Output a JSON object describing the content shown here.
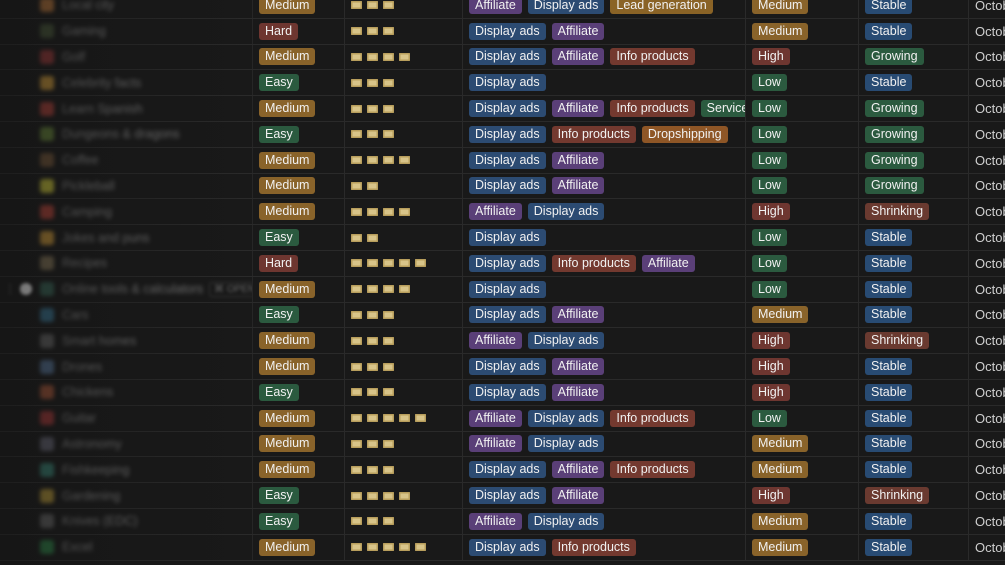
{
  "open_badge": "⌘ OPEN",
  "colors": {
    "background": "#191919",
    "medium": "#89632a",
    "hard": "#6e3630",
    "easy": "#2b5a3f",
    "affiliate": "#5a3f78",
    "display_ads": "#2c4b72",
    "lead_generation": "#8a6326",
    "info_products": "#73392f",
    "services": "#2b5a3f",
    "dropshipping": "#8e5626",
    "stable": "#284b73",
    "growing": "#2b5a3f",
    "shrinking": "#6a3a30"
  },
  "rows": [
    {
      "name": "Local city",
      "icon": "#c27a3b",
      "difficulty": "Medium",
      "cost": 3,
      "monetization": [
        "Affiliate",
        "Display ads",
        "Lead generation"
      ],
      "competition": "Medium",
      "trend": "Stable",
      "date": "Octob"
    },
    {
      "name": "Gaming",
      "icon": "#4a5a3a",
      "difficulty": "Hard",
      "cost": 3,
      "monetization": [
        "Display ads",
        "Affiliate"
      ],
      "competition": "Medium",
      "trend": "Stable",
      "date": "Octob"
    },
    {
      "name": "Golf",
      "icon": "#a33a3a",
      "difficulty": "Medium",
      "cost": 4,
      "monetization": [
        "Display ads",
        "Affiliate",
        "Info products"
      ],
      "competition": "High",
      "trend": "Growing",
      "date": "Octob"
    },
    {
      "name": "Celebrity facts",
      "icon": "#d9a13a",
      "difficulty": "Easy",
      "cost": 3,
      "monetization": [
        "Display ads"
      ],
      "competition": "Low",
      "trend": "Stable",
      "date": "Octob"
    },
    {
      "name": "Learn Spanish",
      "icon": "#b7423a",
      "difficulty": "Medium",
      "cost": 3,
      "monetization": [
        "Display ads",
        "Affiliate",
        "Info products",
        "Services"
      ],
      "competition": "Low",
      "trend": "Growing",
      "date": "Octob"
    },
    {
      "name": "Dungeons & dragons",
      "icon": "#6a8a3a",
      "difficulty": "Easy",
      "cost": 3,
      "monetization": [
        "Display ads",
        "Info products",
        "Dropshipping"
      ],
      "competition": "Low",
      "trend": "Growing",
      "date": "Octob"
    },
    {
      "name": "Coffee",
      "icon": "#7a5a3a",
      "difficulty": "Medium",
      "cost": 4,
      "monetization": [
        "Display ads",
        "Affiliate"
      ],
      "competition": "Low",
      "trend": "Growing",
      "date": "Octob"
    },
    {
      "name": "Pickleball",
      "icon": "#d7d13a",
      "difficulty": "Medium",
      "cost": 2,
      "monetization": [
        "Display ads",
        "Affiliate"
      ],
      "competition": "Low",
      "trend": "Growing",
      "date": "Octob"
    },
    {
      "name": "Camping",
      "icon": "#c2463a",
      "difficulty": "Medium",
      "cost": 4,
      "monetization": [
        "Affiliate",
        "Display ads"
      ],
      "competition": "High",
      "trend": "Shrinking",
      "date": "Octob"
    },
    {
      "name": "Jokes and puns",
      "icon": "#d9a13a",
      "difficulty": "Easy",
      "cost": 2,
      "monetization": [
        "Display ads"
      ],
      "competition": "Low",
      "trend": "Stable",
      "date": "Octob"
    },
    {
      "name": "Recipes",
      "icon": "#8a7a5a",
      "difficulty": "Hard",
      "cost": 5,
      "monetization": [
        "Display ads",
        "Info products",
        "Affiliate"
      ],
      "competition": "Low",
      "trend": "Stable",
      "date": "Octob"
    },
    {
      "name": "Online tools & calculators",
      "icon": "#3a6a5a",
      "difficulty": "Medium",
      "cost": 4,
      "monetization": [
        "Display ads"
      ],
      "competition": "Low",
      "trend": "Stable",
      "date": "Octob",
      "hovered": true
    },
    {
      "name": "Cars",
      "icon": "#3a7a9a",
      "difficulty": "Easy",
      "cost": 3,
      "monetization": [
        "Display ads",
        "Affiliate"
      ],
      "competition": "Medium",
      "trend": "Stable",
      "date": "Octob"
    },
    {
      "name": "Smart homes",
      "icon": "#6a6a6a",
      "difficulty": "Medium",
      "cost": 3,
      "monetization": [
        "Affiliate",
        "Display ads"
      ],
      "competition": "High",
      "trend": "Shrinking",
      "date": "Octob"
    },
    {
      "name": "Drones",
      "icon": "#5a7aa0",
      "difficulty": "Medium",
      "cost": 3,
      "monetization": [
        "Display ads",
        "Affiliate"
      ],
      "competition": "High",
      "trend": "Stable",
      "date": "Octob"
    },
    {
      "name": "Chickens",
      "icon": "#b05a3a",
      "difficulty": "Easy",
      "cost": 3,
      "monetization": [
        "Display ads",
        "Affiliate"
      ],
      "competition": "High",
      "trend": "Stable",
      "date": "Octob"
    },
    {
      "name": "Guitar",
      "icon": "#b03a3a",
      "difficulty": "Medium",
      "cost": 5,
      "monetization": [
        "Affiliate",
        "Display ads",
        "Info products"
      ],
      "competition": "Low",
      "trend": "Stable",
      "date": "Octob"
    },
    {
      "name": "Astronomy",
      "icon": "#6a6a7a",
      "difficulty": "Medium",
      "cost": 3,
      "monetization": [
        "Affiliate",
        "Display ads"
      ],
      "competition": "Medium",
      "trend": "Stable",
      "date": "Octob"
    },
    {
      "name": "Fishkeeping",
      "icon": "#3a8a7a",
      "difficulty": "Medium",
      "cost": 3,
      "monetization": [
        "Display ads",
        "Affiliate",
        "Info products"
      ],
      "competition": "Medium",
      "trend": "Stable",
      "date": "Octob"
    },
    {
      "name": "Gardening",
      "icon": "#c2a13a",
      "difficulty": "Easy",
      "cost": 4,
      "monetization": [
        "Display ads",
        "Affiliate"
      ],
      "competition": "High",
      "trend": "Shrinking",
      "date": "Octob"
    },
    {
      "name": "Knives (EDC)",
      "icon": "#6a6a6a",
      "difficulty": "Easy",
      "cost": 3,
      "monetization": [
        "Affiliate",
        "Display ads"
      ],
      "competition": "Medium",
      "trend": "Stable",
      "date": "Octob"
    },
    {
      "name": "Excel",
      "icon": "#2f8a4a",
      "difficulty": "Medium",
      "cost": 5,
      "monetization": [
        "Display ads",
        "Info products"
      ],
      "competition": "Medium",
      "trend": "Stable",
      "date": "Octob"
    }
  ]
}
